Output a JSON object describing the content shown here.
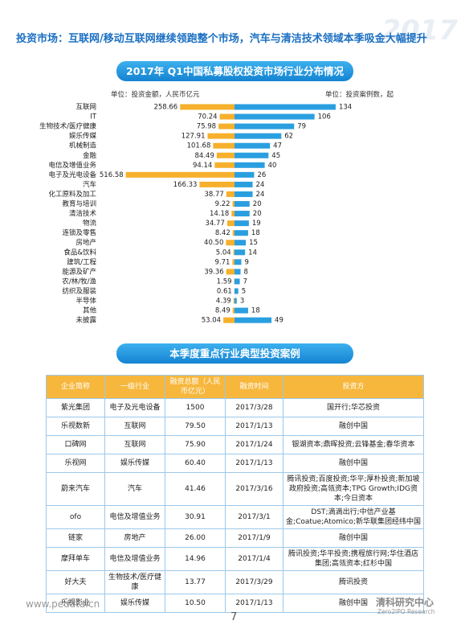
{
  "header": {
    "title": "投资市场：互联网/移动互联网继续领跑整个市场，汽车与清洁技术领域本季吸金大幅提升",
    "watermark": "2017"
  },
  "chart_data": {
    "type": "bar",
    "title": "2017年 Q1中国私募股权投资市场行业分布情况",
    "left_unit": "单位：投资金额，人民币亿元",
    "right_unit": "单位：投资案例数，起",
    "categories": [
      "互联网",
      "IT",
      "生物技术/医疗健康",
      "娱乐传媒",
      "机械制造",
      "金融",
      "电信及增值业务",
      "电子及光电设备",
      "汽车",
      "化工原料及加工",
      "教育与培训",
      "清洁技术",
      "物流",
      "连锁及零售",
      "房地产",
      "食品&饮料",
      "建筑/工程",
      "能源及矿产",
      "农/林/牧/渔",
      "纺织及服装",
      "半导体",
      "其他",
      "未披露"
    ],
    "series": [
      {
        "color": "#f6b02c",
        "values": [
          258.66,
          70.24,
          75.98,
          127.91,
          101.68,
          84.49,
          94.14,
          516.58,
          166.33,
          38.77,
          9.22,
          14.18,
          34.77,
          8.42,
          40.5,
          5.04,
          9.71,
          39.36,
          1.59,
          0.61,
          4.39,
          8.49,
          53.04
        ],
        "value_labels": [
          "258.66",
          "70.24",
          "75.98",
          "127.91",
          "101.68",
          "84.49",
          "94.14",
          "516.58",
          "166.33",
          "38.77",
          "9.22",
          "14.18",
          "34.77",
          "8.42",
          "40.50",
          "5.04",
          "9.71",
          "39.36",
          "1.59",
          "0.61",
          "4.39",
          "8.49",
          "53.04"
        ]
      },
      {
        "color": "#2a9fe0",
        "values": [
          134,
          106,
          79,
          62,
          47,
          45,
          40,
          26,
          24,
          24,
          20,
          20,
          19,
          18,
          15,
          14,
          9,
          8,
          7,
          5,
          3,
          18,
          49
        ]
      }
    ]
  },
  "table": {
    "title": "本季度重点行业典型投资案例",
    "columns": [
      "企业简称",
      "一级行业",
      "融资总额（人民币亿元）",
      "融资时间",
      "投资方"
    ],
    "rows": [
      [
        "紫光集团",
        "电子及光电设备",
        "1500",
        "2017/3/28",
        "国开行;华芯投资"
      ],
      [
        "乐视数新",
        "互联网",
        "79.50",
        "2017/1/13",
        "融创中国"
      ],
      [
        "口碑网",
        "互联网",
        "75.90",
        "2017/1/24",
        "银湖资本;鼎晖投资;云锋基金;春华资本"
      ],
      [
        "乐视网",
        "娱乐传媒",
        "60.40",
        "2017/1/13",
        "融创中国"
      ],
      [
        "蔚来汽车",
        "汽车",
        "41.46",
        "2017/3/16",
        "腾讯投资;百度投资;华平;厚朴投资;新加坡政府投资;高瓴资本;TPG Growth;IDG资本;今日资本"
      ],
      [
        "ofo",
        "电信及增值业务",
        "30.91",
        "2017/3/1",
        "DST;滴滴出行;中信产业基金;Coatue;Atomico;新华联集团经纬中国"
      ],
      [
        "链家",
        "房地产",
        "26.00",
        "2017/1/9",
        "融创中国"
      ],
      [
        "摩拜单车",
        "电信及增值业务",
        "14.96",
        "2017/1/4",
        "腾讯投资;华平投资;携程旅行网;华住酒店集团;高瓴资本;红杉中国"
      ],
      [
        "好大夫",
        "生物技术/医疗健康",
        "13.77",
        "2017/3/29",
        "腾讯投资"
      ],
      [
        "乐视影业",
        "娱乐传媒",
        "10.50",
        "2017/1/13",
        "融创中国"
      ]
    ]
  },
  "footer": {
    "url": "www.pedata.cn",
    "page": "7",
    "logo": "清科研究中心",
    "logo_sub": "Zero2IPO Research"
  }
}
